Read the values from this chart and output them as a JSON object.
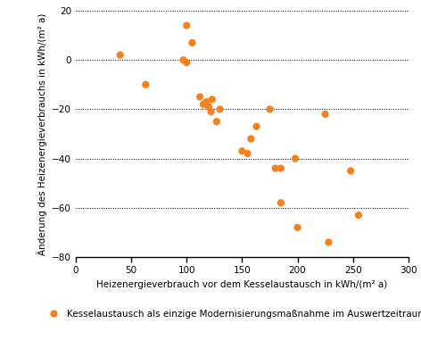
{
  "x_data": [
    40,
    63,
    97,
    100,
    100,
    105,
    112,
    115,
    118,
    120,
    122,
    123,
    127,
    130,
    150,
    155,
    158,
    163,
    175,
    180,
    185,
    185,
    198,
    200,
    225,
    228,
    248,
    255
  ],
  "y_data": [
    2,
    -10,
    0,
    -1,
    14,
    7,
    -15,
    -18,
    -17,
    -19,
    -21,
    -16,
    -25,
    -20,
    -37,
    -38,
    -32,
    -27,
    -20,
    -44,
    -44,
    -58,
    -40,
    -68,
    -22,
    -74,
    -45,
    -63
  ],
  "dot_color": "#F5821E",
  "dot_size": 35,
  "xlabel": "Heizenergieverbrauch vor dem Kesselaustausch in kWh/(m² a)",
  "ylabel": "Änderung des Heizenergieverbrauchs in kWh/(m² a)",
  "xlim": [
    0,
    300
  ],
  "ylim": [
    -80,
    20
  ],
  "xticks": [
    0,
    50,
    100,
    150,
    200,
    250,
    300
  ],
  "yticks": [
    20,
    0,
    -20,
    -40,
    -60,
    -80
  ],
  "legend_label": "Kesselaustausch als einzige Modernisierungsmaßnahme im Auswertzeitraum",
  "background_color": "#ffffff",
  "axis_fontsize": 7.5,
  "tick_fontsize": 7.5,
  "legend_fontsize": 7.5
}
